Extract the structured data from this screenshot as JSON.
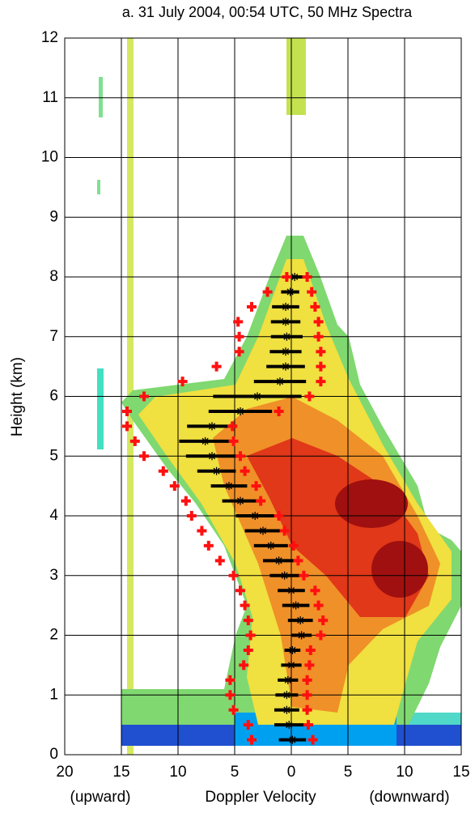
{
  "chart_data": {
    "type": "scatter",
    "title": "a. 31 July 2004, 00:54 UTC, 50 MHz Spectra",
    "ylabel": "Height (km)",
    "xlabel": "Doppler Velocity",
    "xlabel_left": "(upward)",
    "xlabel_right": "(downward)",
    "xlim": [
      -20,
      15
    ],
    "xticks": [
      {
        "value": -20,
        "label": "20"
      },
      {
        "value": -15,
        "label": "15"
      },
      {
        "value": -10,
        "label": "10"
      },
      {
        "value": -5,
        "label": "5"
      },
      0,
      5,
      10,
      15
    ],
    "ylim": [
      0,
      12
    ],
    "yticks": [
      0,
      1,
      2,
      3,
      4,
      5,
      6,
      7,
      8,
      9,
      10,
      11,
      12
    ],
    "grid": true,
    "heights": [
      0.25,
      0.5,
      0.75,
      1.0,
      1.25,
      1.5,
      1.75,
      2.0,
      2.25,
      2.5,
      2.75,
      3.0,
      3.25,
      3.5,
      3.75,
      4.0,
      4.25,
      4.5,
      4.75,
      5.0,
      5.25,
      5.5,
      5.75,
      6.0,
      6.25,
      6.5,
      6.75,
      7.0,
      7.25,
      7.5,
      7.75,
      8.0
    ],
    "mean_velocity": [
      0.1,
      -0.2,
      -0.4,
      -0.4,
      -0.3,
      0.0,
      0.1,
      0.9,
      0.8,
      0.4,
      0.0,
      -0.6,
      -1.1,
      -1.8,
      -2.5,
      -3.2,
      -4.5,
      -5.5,
      -6.6,
      -7.0,
      -7.6,
      -7.0,
      -4.5,
      -3.0,
      -1.0,
      -0.5,
      -0.5,
      -0.4,
      -0.5,
      -0.5,
      -0.1,
      0.3
    ],
    "spectral_width": [
      1.2,
      1.3,
      1.1,
      1.0,
      0.9,
      0.9,
      0.7,
      0.9,
      1.1,
      1.2,
      1.2,
      1.3,
      1.4,
      1.5,
      1.6,
      1.7,
      1.6,
      1.6,
      1.7,
      2.3,
      2.3,
      2.2,
      2.8,
      3.9,
      2.3,
      1.7,
      1.4,
      1.4,
      1.3,
      1.2,
      0.8,
      0.7
    ],
    "lower_edge": [
      -3.5,
      -3.8,
      -5.1,
      -5.4,
      -5.4,
      -4.2,
      -3.8,
      -3.6,
      -3.8,
      -4.1,
      -4.5,
      -5.1,
      -6.3,
      -7.3,
      -7.9,
      -8.8,
      -9.3,
      -10.3,
      -11.3,
      -13.0,
      -13.8,
      -14.5,
      -14.5,
      -13.0,
      -9.6,
      -6.6,
      -4.6,
      -4.6,
      -4.7,
      -3.5,
      -2.1,
      -0.4
    ],
    "upper_edge": [
      1.9,
      1.5,
      1.4,
      1.4,
      1.4,
      1.6,
      1.7,
      2.6,
      2.8,
      2.4,
      2.1,
      1.1,
      0.6,
      0.2,
      -0.6,
      -1.1,
      -2.7,
      -3.1,
      -4.1,
      -4.5,
      -5.1,
      -5.2,
      -1.1,
      1.6,
      2.6,
      2.6,
      2.6,
      2.4,
      2.4,
      2.1,
      1.8,
      1.4
    ],
    "mean_color": "#000000",
    "edge_color": "#ff1010"
  }
}
